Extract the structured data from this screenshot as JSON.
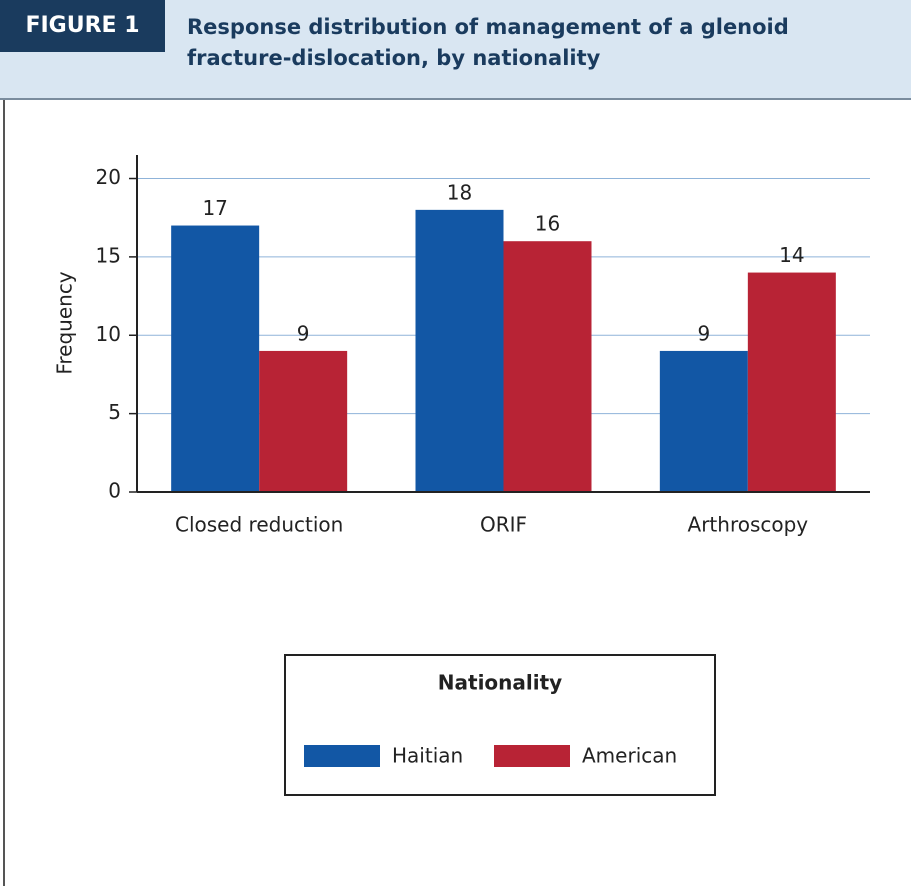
{
  "figure_label": "FIGURE 1",
  "chart_data": {
    "type": "bar",
    "title": "Response distribution of management of a glenoid fracture-dislocation, by nationality",
    "y_label": "Frequency",
    "categories": [
      "Closed reduction",
      "ORIF",
      "Arthroscopy"
    ],
    "series": [
      {
        "name": "Haitian",
        "color": "#1257a5",
        "values": [
          17,
          18,
          9
        ]
      },
      {
        "name": "American",
        "color": "#b82335",
        "values": [
          9,
          16,
          14
        ]
      }
    ],
    "ylim": [
      0,
      21.5
    ],
    "yticks": [
      0,
      5,
      10,
      15,
      20
    ],
    "grid": true,
    "legend_title": "Nationality",
    "legend_position": "bottom"
  }
}
